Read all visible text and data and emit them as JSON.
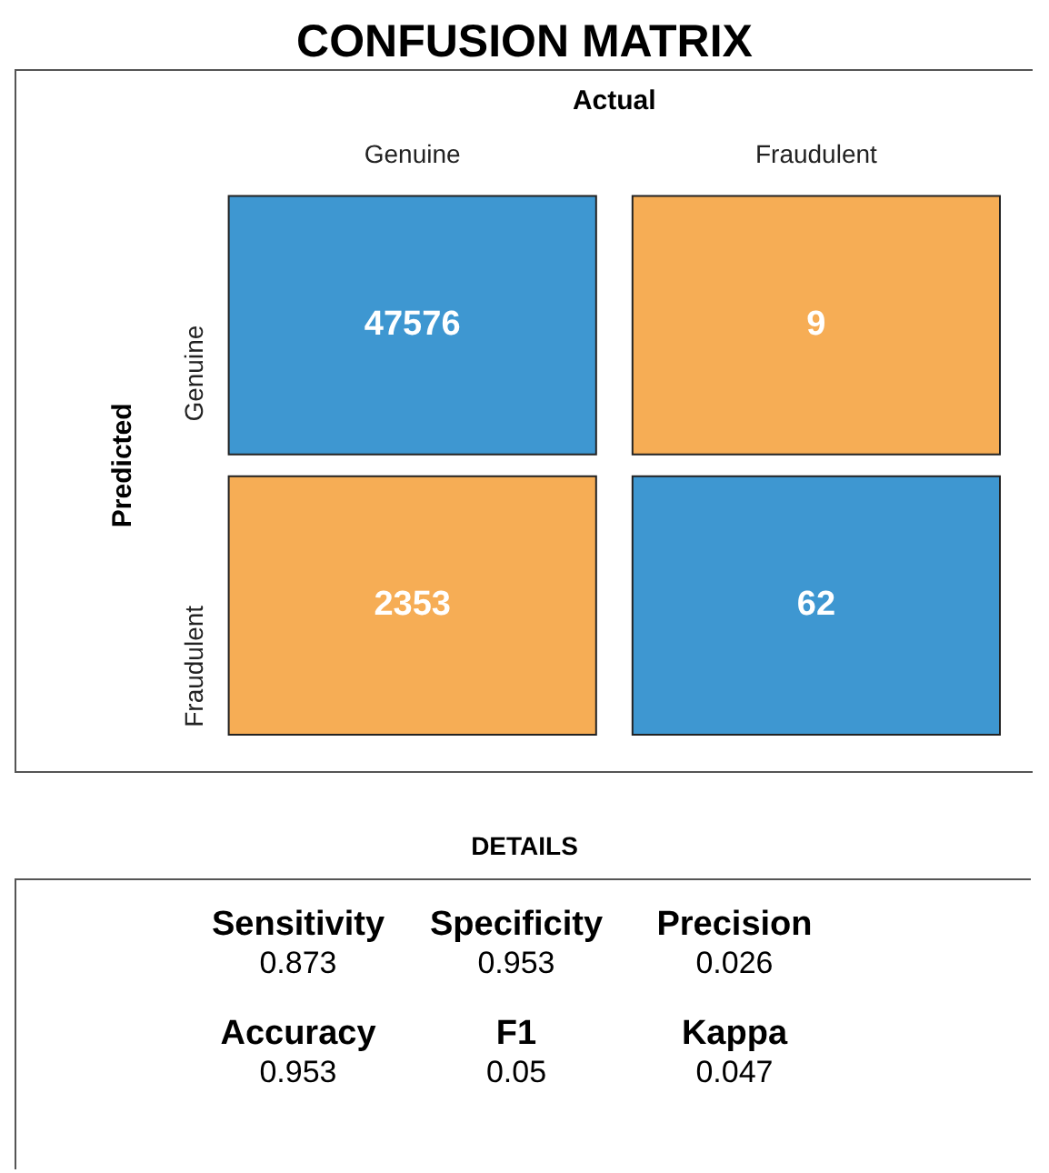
{
  "chart_data": [
    {
      "type": "heatmap",
      "title": "CONFUSION MATRIX",
      "xlabel": "Actual",
      "ylabel": "Predicted",
      "categories": [
        "Genuine",
        "Fraudulent"
      ],
      "y_categories": [
        "Genuine",
        "Fraudulent"
      ],
      "cells": [
        [
          47576,
          9
        ],
        [
          2353,
          62
        ]
      ],
      "colors": [
        "#3e97d1",
        "#f6ad55",
        "#f6ad55",
        "#3e97d1"
      ],
      "data_labels": true
    },
    {
      "type": "other",
      "title": "DETAILS",
      "annotations": [
        "Sensitivity",
        "0.873",
        "Specificity",
        "0.953",
        "Precision",
        "0.026",
        "Accuracy",
        "0.953",
        "F1",
        "0.05",
        "Kappa",
        "0.047"
      ]
    }
  ]
}
